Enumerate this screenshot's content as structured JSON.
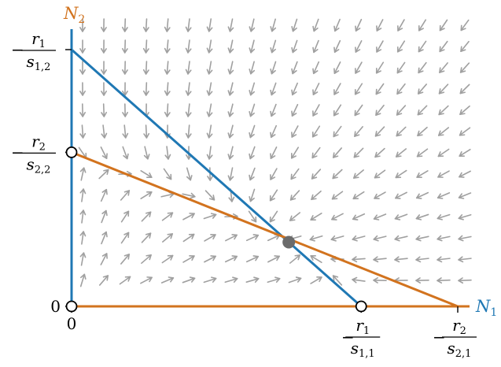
{
  "colors": {
    "blue": "#1f78b4",
    "orange": "#d2731e",
    "arrow": "#a0a0a0",
    "fixed_point": "#6b6b6b",
    "tick": "#000000"
  },
  "axes": {
    "x_label": "N",
    "x_sub": "1",
    "y_label": "N",
    "y_sub": "2",
    "origin_x": "0",
    "origin_y": "0"
  },
  "x_ticks": [
    {
      "sign": "−",
      "num": "r",
      "num_sub": "1",
      "den": "s",
      "den_sub": "1,1",
      "value": 0.75
    },
    {
      "sign": "−",
      "num": "r",
      "num_sub": "2",
      "den": "s",
      "den_sub": "2,1",
      "value": 1.0
    }
  ],
  "y_ticks": [
    {
      "sign": "−",
      "num": "r",
      "num_sub": "1",
      "den": "s",
      "den_sub": "1,2",
      "value": 1.0
    },
    {
      "sign": "−",
      "num": "r",
      "num_sub": "2",
      "den": "s",
      "den_sub": "2,2",
      "value": 0.6
    }
  ],
  "nullclines": {
    "N1_intercept_x": 0.75,
    "N1_intercept_y": 1.0,
    "N2_intercept_x": 1.0,
    "N2_intercept_y": 0.6
  },
  "fixed_points": {
    "stable": [
      0.5625,
      0.25
    ],
    "unstable": [
      [
        0,
        0
      ],
      [
        0.75,
        0
      ],
      [
        0,
        0.6
      ]
    ]
  }
}
